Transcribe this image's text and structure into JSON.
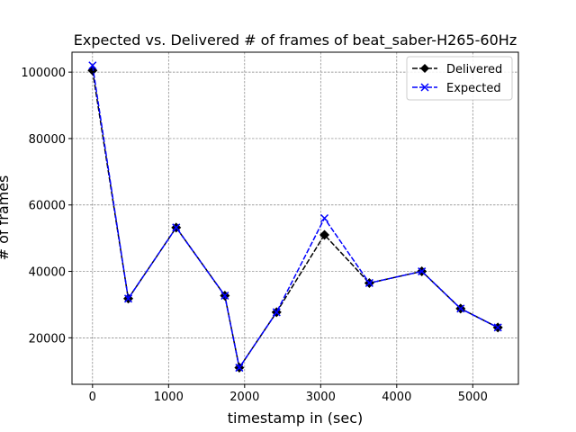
{
  "chart_data": {
    "type": "line",
    "title": "Expected vs. Delivered # of frames of beat_saber-H265-60Hz",
    "xlabel": "timestamp in (sec)",
    "ylabel": "# of frames",
    "xlim": [
      -270,
      5600
    ],
    "ylim": [
      6000,
      106000
    ],
    "xticks": [
      0,
      1000,
      2000,
      3000,
      4000,
      5000
    ],
    "yticks": [
      20000,
      40000,
      60000,
      80000,
      100000
    ],
    "grid": true,
    "legend_position": "top-right",
    "x": [
      0,
      470,
      1100,
      1740,
      1930,
      2420,
      3050,
      3640,
      4330,
      4840,
      5330
    ],
    "series": [
      {
        "name": "Delivered",
        "color": "#000000",
        "marker": "diamond",
        "line_style": "dashed",
        "values": [
          100500,
          31800,
          53200,
          32700,
          11000,
          27700,
          51000,
          36500,
          40000,
          28800,
          23100
        ]
      },
      {
        "name": "Expected",
        "color": "#0000ff",
        "marker": "x",
        "line_style": "dashed",
        "values": [
          102000,
          31800,
          53200,
          32700,
          11000,
          27700,
          56000,
          36500,
          40000,
          28800,
          23100
        ]
      }
    ]
  }
}
